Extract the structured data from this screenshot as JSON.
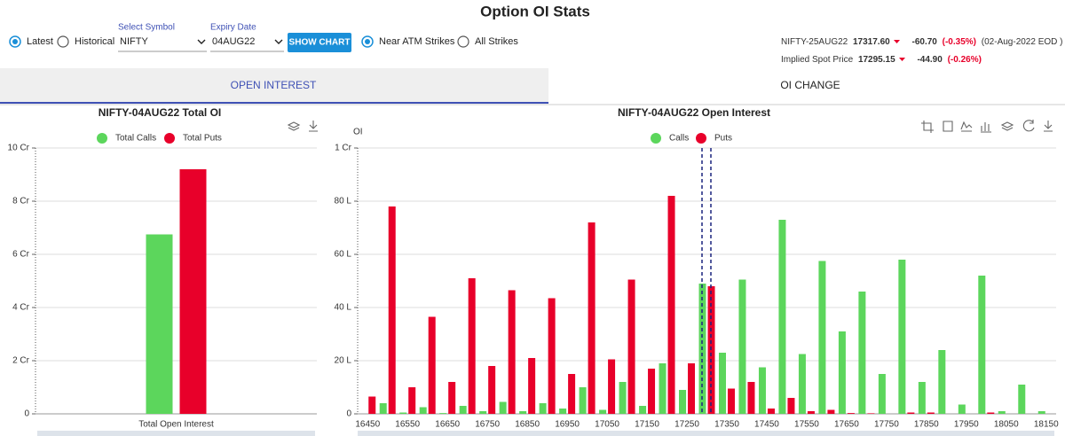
{
  "header": {
    "title": "Option OI Stats"
  },
  "controls": {
    "mode_options": [
      "Latest",
      "Historical"
    ],
    "symbol_label": "Select Symbol",
    "symbol": "NIFTY",
    "expiry_label": "Expiry Date",
    "expiry": "04AUG22",
    "button": "SHOW CHART",
    "strike_options": [
      "Near ATM Strikes",
      "All Strikes"
    ]
  },
  "quote": {
    "futures": {
      "name": "NIFTY-25AUG22",
      "price": "17317.60",
      "change": "-60.70",
      "change_pct": "(-0.35%)",
      "date": "(02-Aug-2022 EOD )"
    },
    "spot": {
      "label": "Implied Spot Price",
      "price": "17295.15",
      "change": "-44.90",
      "change_pct": "(-0.26%)"
    }
  },
  "tabs": [
    "OPEN INTEREST",
    "OI CHANGE"
  ],
  "chart_data": [
    {
      "type": "bar",
      "title": "NIFTY-04AUG22 Total OI",
      "categories": [
        "Total Open Interest"
      ],
      "series": [
        {
          "name": "Total Calls",
          "color": "#5cd65c",
          "values": [
            6.75
          ]
        },
        {
          "name": "Total Puts",
          "color": "#e8002a",
          "values": [
            9.2
          ]
        }
      ],
      "ylim": [
        0,
        10
      ],
      "yticks": [
        0,
        {
          "value": 2,
          "label": "2 Cr"
        },
        {
          "value": 4,
          "label": "4 Cr"
        },
        {
          "value": 6,
          "label": "6 Cr"
        },
        {
          "value": 8,
          "label": "8 Cr"
        },
        {
          "value": 10,
          "label": "10 Cr"
        }
      ],
      "grid": true
    },
    {
      "type": "bar",
      "title": "NIFTY-04AUG22 Open Interest",
      "y_label": "OI",
      "categories": [
        "16450",
        null,
        "16550",
        null,
        "16650",
        null,
        "16750",
        null,
        "16850",
        null,
        "16950",
        null,
        "17050",
        null,
        "17150",
        null,
        "17250",
        null,
        "17350",
        null,
        "17450",
        null,
        "17550",
        null,
        "17650",
        null,
        "17750",
        null,
        "17850",
        null,
        "17950",
        null,
        "18050",
        null,
        "18150"
      ],
      "series": [
        {
          "name": "Calls",
          "color": "#5cd65c",
          "values": [
            0,
            4,
            0.5,
            2.5,
            0.3,
            3,
            1,
            4.5,
            1,
            4,
            2,
            10,
            1.5,
            12,
            3,
            19,
            9,
            49,
            23,
            50.5,
            17.5,
            73,
            22.5,
            57.5,
            31,
            46,
            15,
            58,
            12,
            24,
            3.5,
            52,
            1,
            11,
            1
          ]
        },
        {
          "name": "Puts",
          "color": "#e8002a",
          "values": [
            6.5,
            78,
            10,
            36.5,
            12,
            51,
            18,
            46.5,
            21,
            43.5,
            15,
            72,
            20.5,
            50.5,
            17,
            82,
            19,
            48,
            9.5,
            12,
            2,
            6,
            1,
            1.5,
            0.3,
            0.2,
            0,
            0.5,
            0.5,
            0,
            0,
            0.5,
            0,
            0,
            0
          ]
        }
      ],
      "ylim": [
        0,
        100
      ],
      "yticks": [
        0,
        {
          "value": 20,
          "label": "20 L"
        },
        {
          "value": 40,
          "label": "40 L"
        },
        {
          "value": 60,
          "label": "60 L"
        },
        {
          "value": 80,
          "label": "80 L"
        },
        {
          "value": 100,
          "label": "1 Cr"
        }
      ],
      "grid": true
    }
  ]
}
